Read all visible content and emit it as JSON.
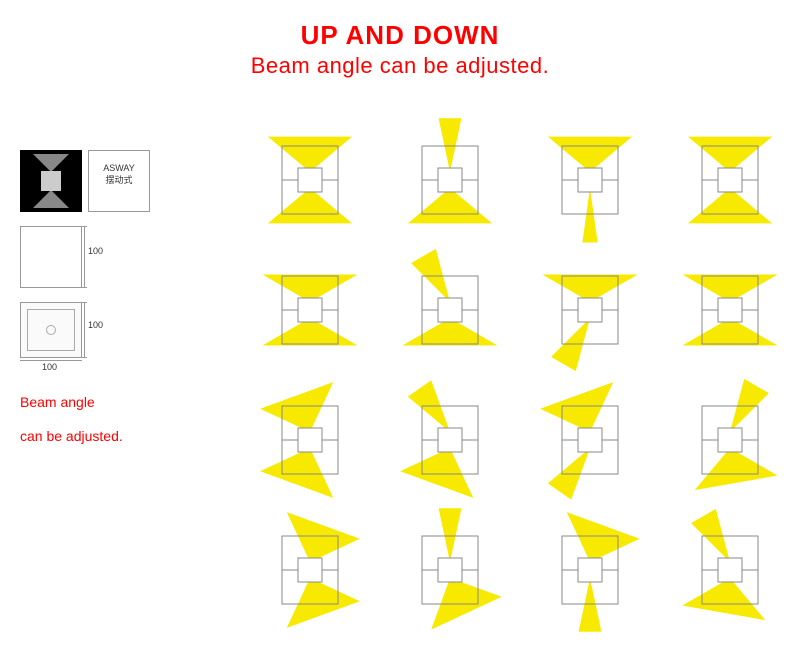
{
  "header": {
    "line1": "UP AND DOWN",
    "line2": "Beam angle can be adjusted."
  },
  "sidebar": {
    "asway_label": "ASWAY",
    "asway_cn": "摆动式",
    "dim": "100",
    "text1": "Beam angle",
    "text2": "can be adjusted."
  },
  "colors": {
    "beam": "#f7ea00",
    "outline": "#888888",
    "headline": "#ff0000"
  },
  "beams": [
    [
      {
        "up": {
          "spread": 50,
          "tilt": 0
        },
        "down": {
          "spread": 50,
          "tilt": 0
        }
      },
      {
        "up": {
          "spread": 12,
          "tilt": 0
        },
        "down": {
          "spread": 50,
          "tilt": 0
        }
      },
      {
        "up": {
          "spread": 50,
          "tilt": 0
        },
        "down": {
          "spread": 8,
          "tilt": 0
        }
      },
      {
        "up": {
          "spread": 50,
          "tilt": 0
        },
        "down": {
          "spread": 50,
          "tilt": 0
        },
        "extra_up": true
      }
    ],
    [
      {
        "up": {
          "spread": 60,
          "tilt": 0
        },
        "down": {
          "spread": 60,
          "tilt": 0
        }
      },
      {
        "up": {
          "spread": 15,
          "tilt": -30
        },
        "down": {
          "spread": 60,
          "tilt": 0
        }
      },
      {
        "up": {
          "spread": 60,
          "tilt": 0
        },
        "down": {
          "spread": 15,
          "tilt": 30
        }
      },
      {
        "up": {
          "spread": 60,
          "tilt": 0
        },
        "down": {
          "spread": 60,
          "tilt": 0
        },
        "diamond": true
      }
    ],
    [
      {
        "up": {
          "spread": 45,
          "tilt": -20
        },
        "down": {
          "spread": 45,
          "tilt": 20
        }
      },
      {
        "up": {
          "spread": 15,
          "tilt": -35
        },
        "down": {
          "spread": 45,
          "tilt": 20
        }
      },
      {
        "up": {
          "spread": 45,
          "tilt": -20
        },
        "down": {
          "spread": 15,
          "tilt": 35
        }
      },
      {
        "up": {
          "spread": 15,
          "tilt": 30
        },
        "down": {
          "spread": 50,
          "tilt": -10
        }
      }
    ],
    [
      {
        "up": {
          "spread": 45,
          "tilt": 20
        },
        "down": {
          "spread": 45,
          "tilt": -20
        }
      },
      {
        "up": {
          "spread": 12,
          "tilt": 0
        },
        "down": {
          "spread": 45,
          "tilt": -25
        }
      },
      {
        "up": {
          "spread": 45,
          "tilt": 20
        },
        "down": {
          "spread": 12,
          "tilt": 0
        }
      },
      {
        "up": {
          "spread": 15,
          "tilt": -30
        },
        "down": {
          "spread": 50,
          "tilt": 10
        }
      }
    ]
  ]
}
